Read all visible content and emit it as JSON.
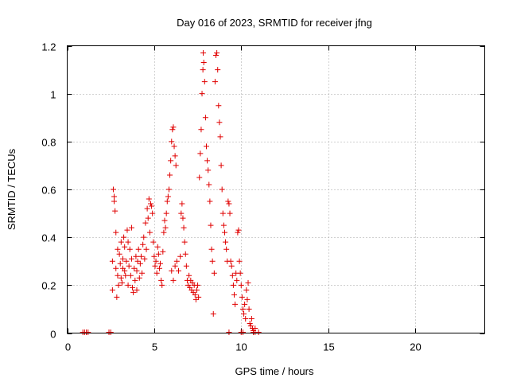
{
  "chart_data": {
    "type": "scatter",
    "title": "Day 016 of 2023, SRMTID for receiver jfng",
    "xlabel": "GPS time / hours",
    "ylabel": "SRMTID / TECUs",
    "xlim": [
      0,
      24
    ],
    "ylim": [
      0,
      1.2
    ],
    "x_ticks": [
      0,
      5,
      10,
      15,
      20
    ],
    "x_tick_labels": [
      "0",
      "5",
      "10",
      "15",
      "20"
    ],
    "y_ticks": [
      0,
      0.2,
      0.4,
      0.6,
      0.8,
      1,
      1.2
    ],
    "y_tick_labels": [
      "0",
      "0.2",
      "0.4",
      "0.6",
      "0.8",
      "1",
      "1.2"
    ],
    "grid": true,
    "marker": "+",
    "color": "#e00000",
    "series": [
      {
        "name": "SRMTID",
        "points": [
          [
            0.9,
            0.0
          ],
          [
            1.0,
            0.0
          ],
          [
            1.1,
            0.0
          ],
          [
            1.2,
            0.0
          ],
          [
            2.4,
            0.0
          ],
          [
            2.5,
            0.0
          ],
          [
            2.6,
            0.18
          ],
          [
            2.6,
            0.3
          ],
          [
            2.65,
            0.6
          ],
          [
            2.7,
            0.57
          ],
          [
            2.7,
            0.55
          ],
          [
            2.75,
            0.51
          ],
          [
            2.8,
            0.42
          ],
          [
            2.8,
            0.27
          ],
          [
            2.85,
            0.15
          ],
          [
            2.9,
            0.35
          ],
          [
            2.9,
            0.24
          ],
          [
            2.95,
            0.2
          ],
          [
            3.0,
            0.33
          ],
          [
            3.05,
            0.29
          ],
          [
            3.1,
            0.38
          ],
          [
            3.1,
            0.23
          ],
          [
            3.15,
            0.21
          ],
          [
            3.2,
            0.31
          ],
          [
            3.2,
            0.27
          ],
          [
            3.25,
            0.4
          ],
          [
            3.3,
            0.36
          ],
          [
            3.3,
            0.26
          ],
          [
            3.35,
            0.24
          ],
          [
            3.4,
            0.3
          ],
          [
            3.45,
            0.43
          ],
          [
            3.5,
            0.38
          ],
          [
            3.5,
            0.2
          ],
          [
            3.55,
            0.28
          ],
          [
            3.6,
            0.35
          ],
          [
            3.65,
            0.24
          ],
          [
            3.7,
            0.44
          ],
          [
            3.7,
            0.31
          ],
          [
            3.75,
            0.19
          ],
          [
            3.8,
            0.17
          ],
          [
            3.85,
            0.27
          ],
          [
            3.9,
            0.22
          ],
          [
            3.95,
            0.32
          ],
          [
            4.0,
            0.26
          ],
          [
            4.0,
            0.18
          ],
          [
            4.05,
            0.3
          ],
          [
            4.1,
            0.35
          ],
          [
            4.15,
            0.23
          ],
          [
            4.2,
            0.29
          ],
          [
            4.25,
            0.32
          ],
          [
            4.3,
            0.25
          ],
          [
            4.35,
            0.37
          ],
          [
            4.4,
            0.4
          ],
          [
            4.45,
            0.31
          ],
          [
            4.5,
            0.46
          ],
          [
            4.55,
            0.35
          ],
          [
            4.6,
            0.52
          ],
          [
            4.65,
            0.48
          ],
          [
            4.7,
            0.56
          ],
          [
            4.75,
            0.42
          ],
          [
            4.8,
            0.54
          ],
          [
            4.85,
            0.53
          ],
          [
            4.9,
            0.5
          ],
          [
            4.95,
            0.38
          ],
          [
            5.0,
            0.32
          ],
          [
            5.05,
            0.28
          ],
          [
            5.1,
            0.3
          ],
          [
            5.15,
            0.25
          ],
          [
            5.2,
            0.36
          ],
          [
            5.25,
            0.33
          ],
          [
            5.3,
            0.27
          ],
          [
            5.35,
            0.29
          ],
          [
            5.4,
            0.22
          ],
          [
            5.45,
            0.2
          ],
          [
            5.5,
            0.34
          ],
          [
            5.55,
            0.42
          ],
          [
            5.6,
            0.47
          ],
          [
            5.65,
            0.44
          ],
          [
            5.7,
            0.5
          ],
          [
            5.75,
            0.55
          ],
          [
            5.8,
            0.57
          ],
          [
            5.85,
            0.6
          ],
          [
            5.9,
            0.66
          ],
          [
            5.95,
            0.72
          ],
          [
            6.0,
            0.8
          ],
          [
            6.05,
            0.85
          ],
          [
            6.1,
            0.86
          ],
          [
            6.15,
            0.78
          ],
          [
            6.2,
            0.74
          ],
          [
            6.25,
            0.7
          ],
          [
            6.0,
            0.26
          ],
          [
            6.1,
            0.22
          ],
          [
            6.2,
            0.28
          ],
          [
            6.3,
            0.3
          ],
          [
            6.4,
            0.26
          ],
          [
            6.5,
            0.32
          ],
          [
            6.55,
            0.5
          ],
          [
            6.6,
            0.54
          ],
          [
            6.65,
            0.48
          ],
          [
            6.7,
            0.44
          ],
          [
            6.75,
            0.38
          ],
          [
            6.8,
            0.33
          ],
          [
            6.85,
            0.28
          ],
          [
            6.9,
            0.22
          ],
          [
            6.95,
            0.2
          ],
          [
            7.0,
            0.24
          ],
          [
            7.05,
            0.19
          ],
          [
            7.1,
            0.22
          ],
          [
            7.15,
            0.18
          ],
          [
            7.2,
            0.21
          ],
          [
            7.25,
            0.17
          ],
          [
            7.3,
            0.2
          ],
          [
            7.35,
            0.16
          ],
          [
            7.4,
            0.14
          ],
          [
            7.45,
            0.18
          ],
          [
            7.5,
            0.2
          ],
          [
            7.55,
            0.15
          ],
          [
            7.6,
            0.65
          ],
          [
            7.65,
            0.75
          ],
          [
            7.7,
            0.85
          ],
          [
            7.75,
            1.0
          ],
          [
            7.8,
            1.1
          ],
          [
            7.82,
            1.17
          ],
          [
            7.85,
            1.13
          ],
          [
            7.9,
            1.05
          ],
          [
            7.95,
            0.9
          ],
          [
            8.0,
            0.78
          ],
          [
            8.05,
            0.72
          ],
          [
            8.1,
            0.68
          ],
          [
            8.15,
            0.62
          ],
          [
            8.2,
            0.55
          ],
          [
            8.25,
            0.45
          ],
          [
            8.3,
            0.35
          ],
          [
            8.35,
            0.3
          ],
          [
            8.4,
            0.08
          ],
          [
            8.45,
            0.25
          ],
          [
            8.5,
            1.05
          ],
          [
            8.55,
            1.16
          ],
          [
            8.6,
            1.17
          ],
          [
            8.65,
            1.1
          ],
          [
            8.7,
            0.95
          ],
          [
            8.75,
            0.88
          ],
          [
            8.8,
            0.82
          ],
          [
            8.85,
            0.7
          ],
          [
            8.9,
            0.6
          ],
          [
            8.95,
            0.5
          ],
          [
            9.0,
            0.45
          ],
          [
            9.05,
            0.42
          ],
          [
            9.1,
            0.38
          ],
          [
            9.15,
            0.35
          ],
          [
            9.2,
            0.3
          ],
          [
            9.25,
            0.55
          ],
          [
            9.3,
            0.54
          ],
          [
            9.35,
            0.5
          ],
          [
            9.4,
            0.3
          ],
          [
            9.45,
            0.28
          ],
          [
            9.5,
            0.24
          ],
          [
            9.55,
            0.2
          ],
          [
            9.6,
            0.16
          ],
          [
            9.65,
            0.12
          ],
          [
            9.7,
            0.25
          ],
          [
            9.75,
            0.22
          ],
          [
            9.8,
            0.42
          ],
          [
            9.85,
            0.43
          ],
          [
            9.9,
            0.3
          ],
          [
            9.95,
            0.25
          ],
          [
            10.0,
            0.2
          ],
          [
            10.05,
            0.15
          ],
          [
            10.1,
            0.1
          ],
          [
            10.15,
            0.08
          ],
          [
            10.2,
            0.12
          ],
          [
            10.25,
            0.06
          ],
          [
            10.3,
            0.18
          ],
          [
            10.35,
            0.14
          ],
          [
            10.4,
            0.21
          ],
          [
            10.45,
            0.1
          ],
          [
            10.5,
            0.04
          ],
          [
            10.55,
            0.03
          ],
          [
            10.6,
            0.06
          ],
          [
            10.65,
            0.02
          ],
          [
            10.7,
            0.01
          ],
          [
            10.8,
            0.02
          ],
          [
            9.3,
            0.0
          ],
          [
            10.0,
            0.0
          ],
          [
            10.1,
            0.0
          ],
          [
            10.7,
            0.0
          ],
          [
            10.8,
            0.0
          ],
          [
            11.0,
            0.0
          ]
        ]
      }
    ]
  }
}
